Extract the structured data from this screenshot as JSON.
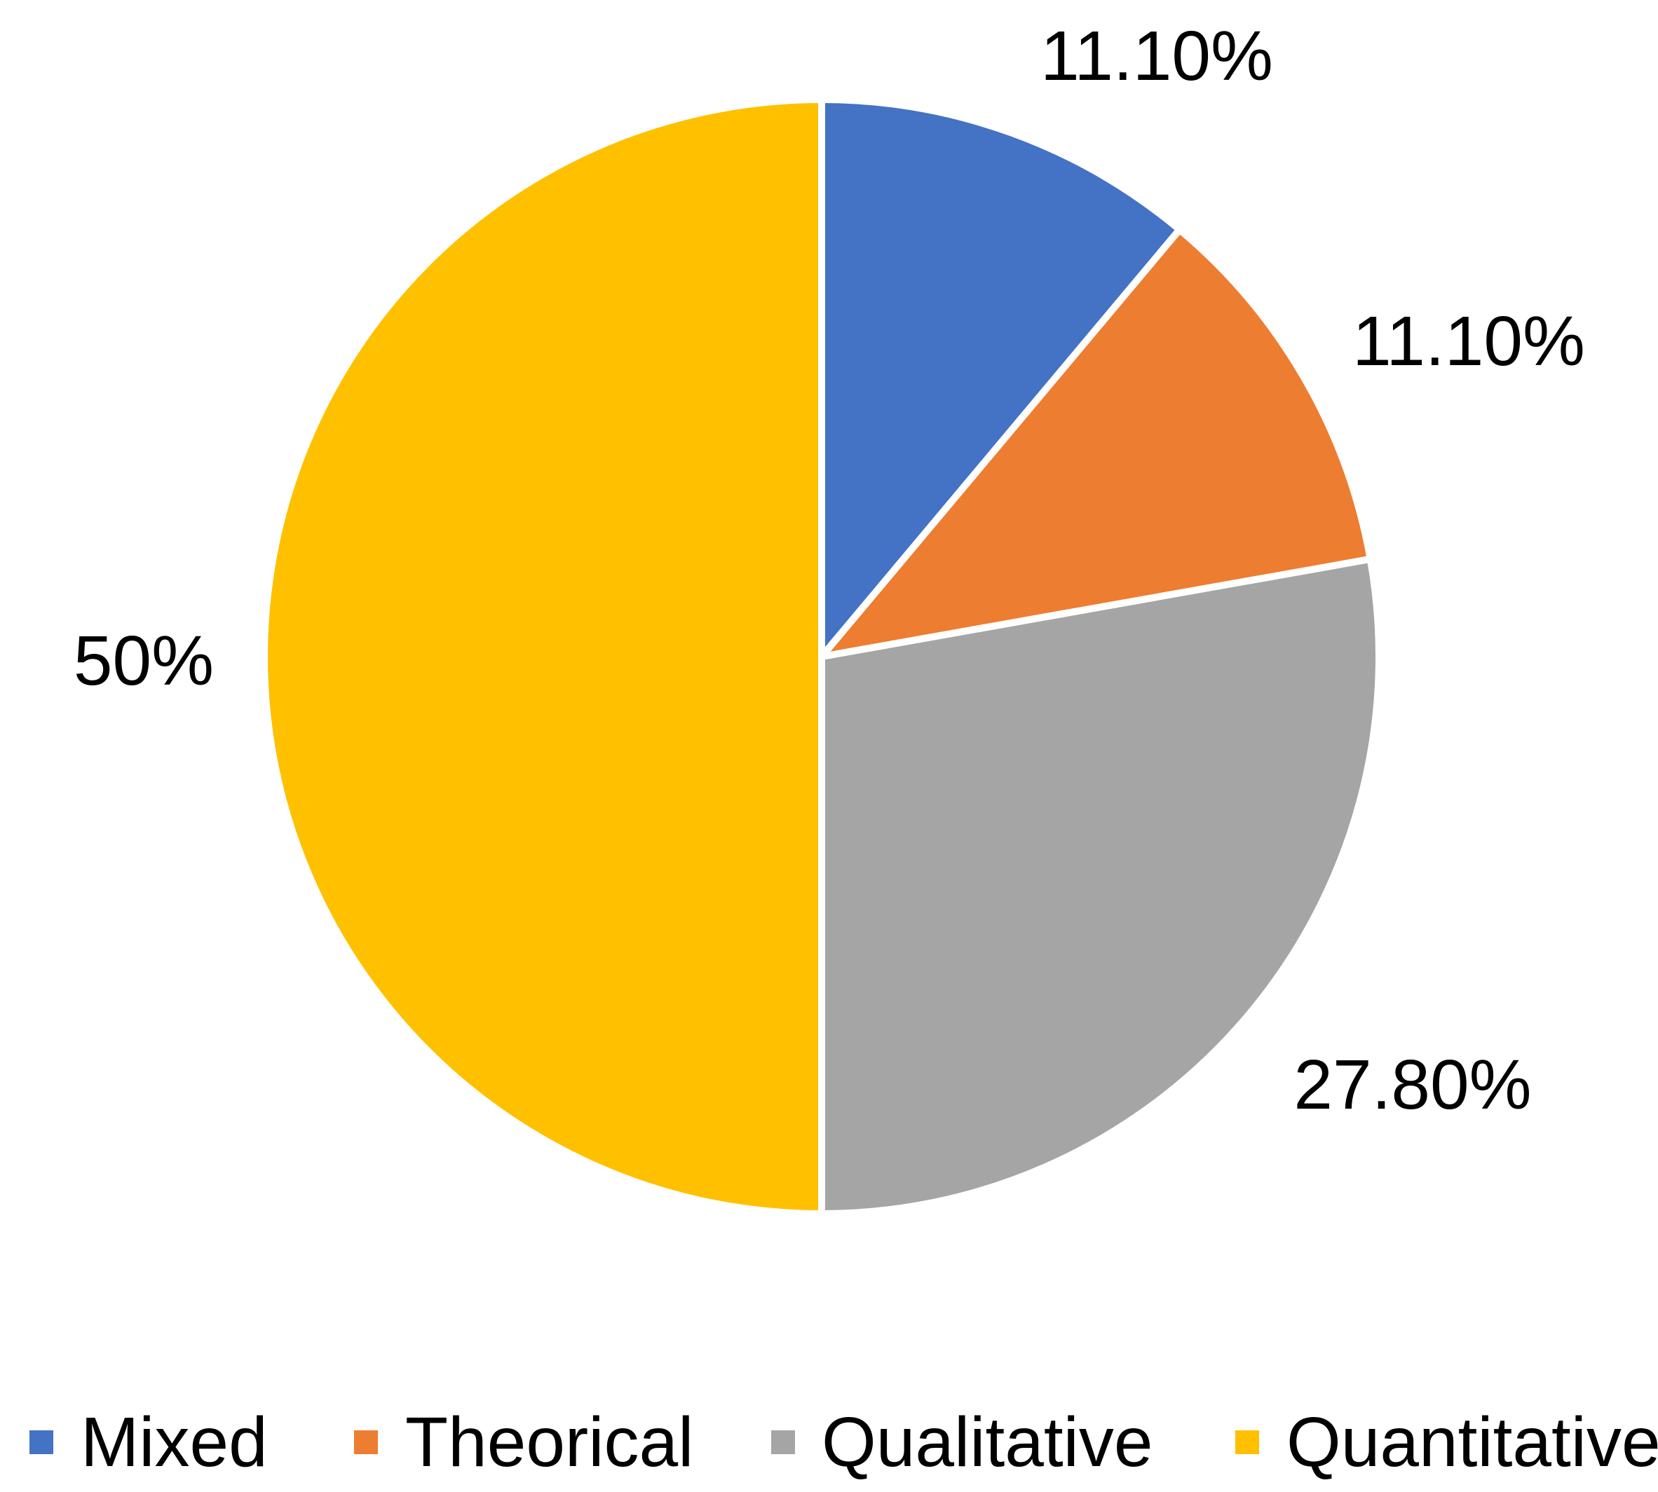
{
  "chart_data": {
    "type": "pie",
    "start_angle_deg": 0,
    "direction": "clockwise",
    "slices": [
      {
        "name": "Mixed",
        "value": 11.1,
        "label": "11.10%",
        "color": "#4472C4"
      },
      {
        "name": "Theorical",
        "value": 11.1,
        "label": "11.10%",
        "color": "#ED7D31"
      },
      {
        "name": "Qualitative",
        "value": 27.8,
        "label": "27.80%",
        "color": "#A5A5A5"
      },
      {
        "name": "Quantitative",
        "value": 50,
        "label": "50%",
        "color": "#FFC000"
      }
    ],
    "legend_position": "bottom",
    "title": ""
  }
}
